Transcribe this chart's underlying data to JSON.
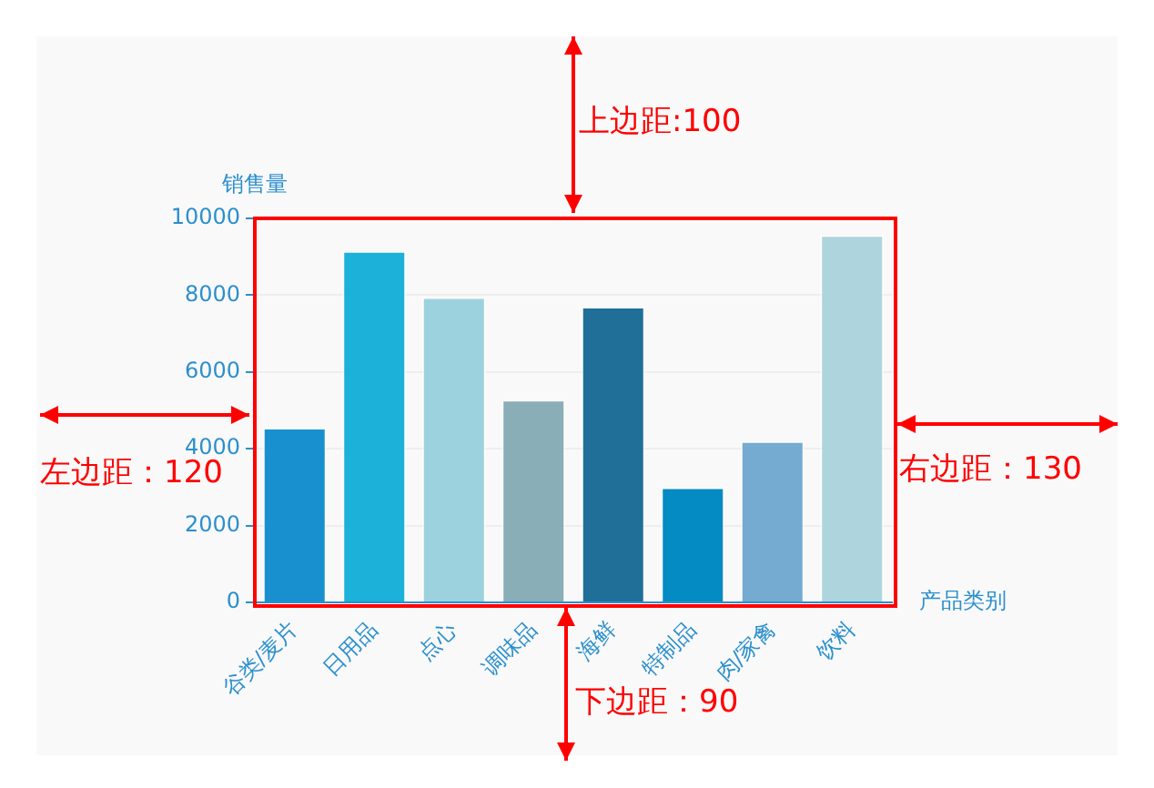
{
  "chart_data": {
    "type": "bar",
    "categories": [
      "谷类/麦片",
      "日用品",
      "点心",
      "调味品",
      "海鲜",
      "特制品",
      "肉/家禽",
      "饮料"
    ],
    "values": [
      4550,
      9150,
      7950,
      5280,
      7700,
      3000,
      4200,
      9570
    ],
    "colors": [
      "#1890cf",
      "#1bb1d8",
      "#9bd2de",
      "#89aeb8",
      "#1f6f99",
      "#058bc3",
      "#75aad1",
      "#aed5dd"
    ],
    "xlabel": "产品类别",
    "ylabel": "销售量",
    "ylim": [
      0,
      10000
    ],
    "yticks": [
      0,
      2000,
      4000,
      6000,
      8000,
      10000
    ],
    "grid": "y",
    "annotations": [
      "上边距:100",
      "左边距：120",
      "右边距：130",
      "下边距：90"
    ]
  }
}
